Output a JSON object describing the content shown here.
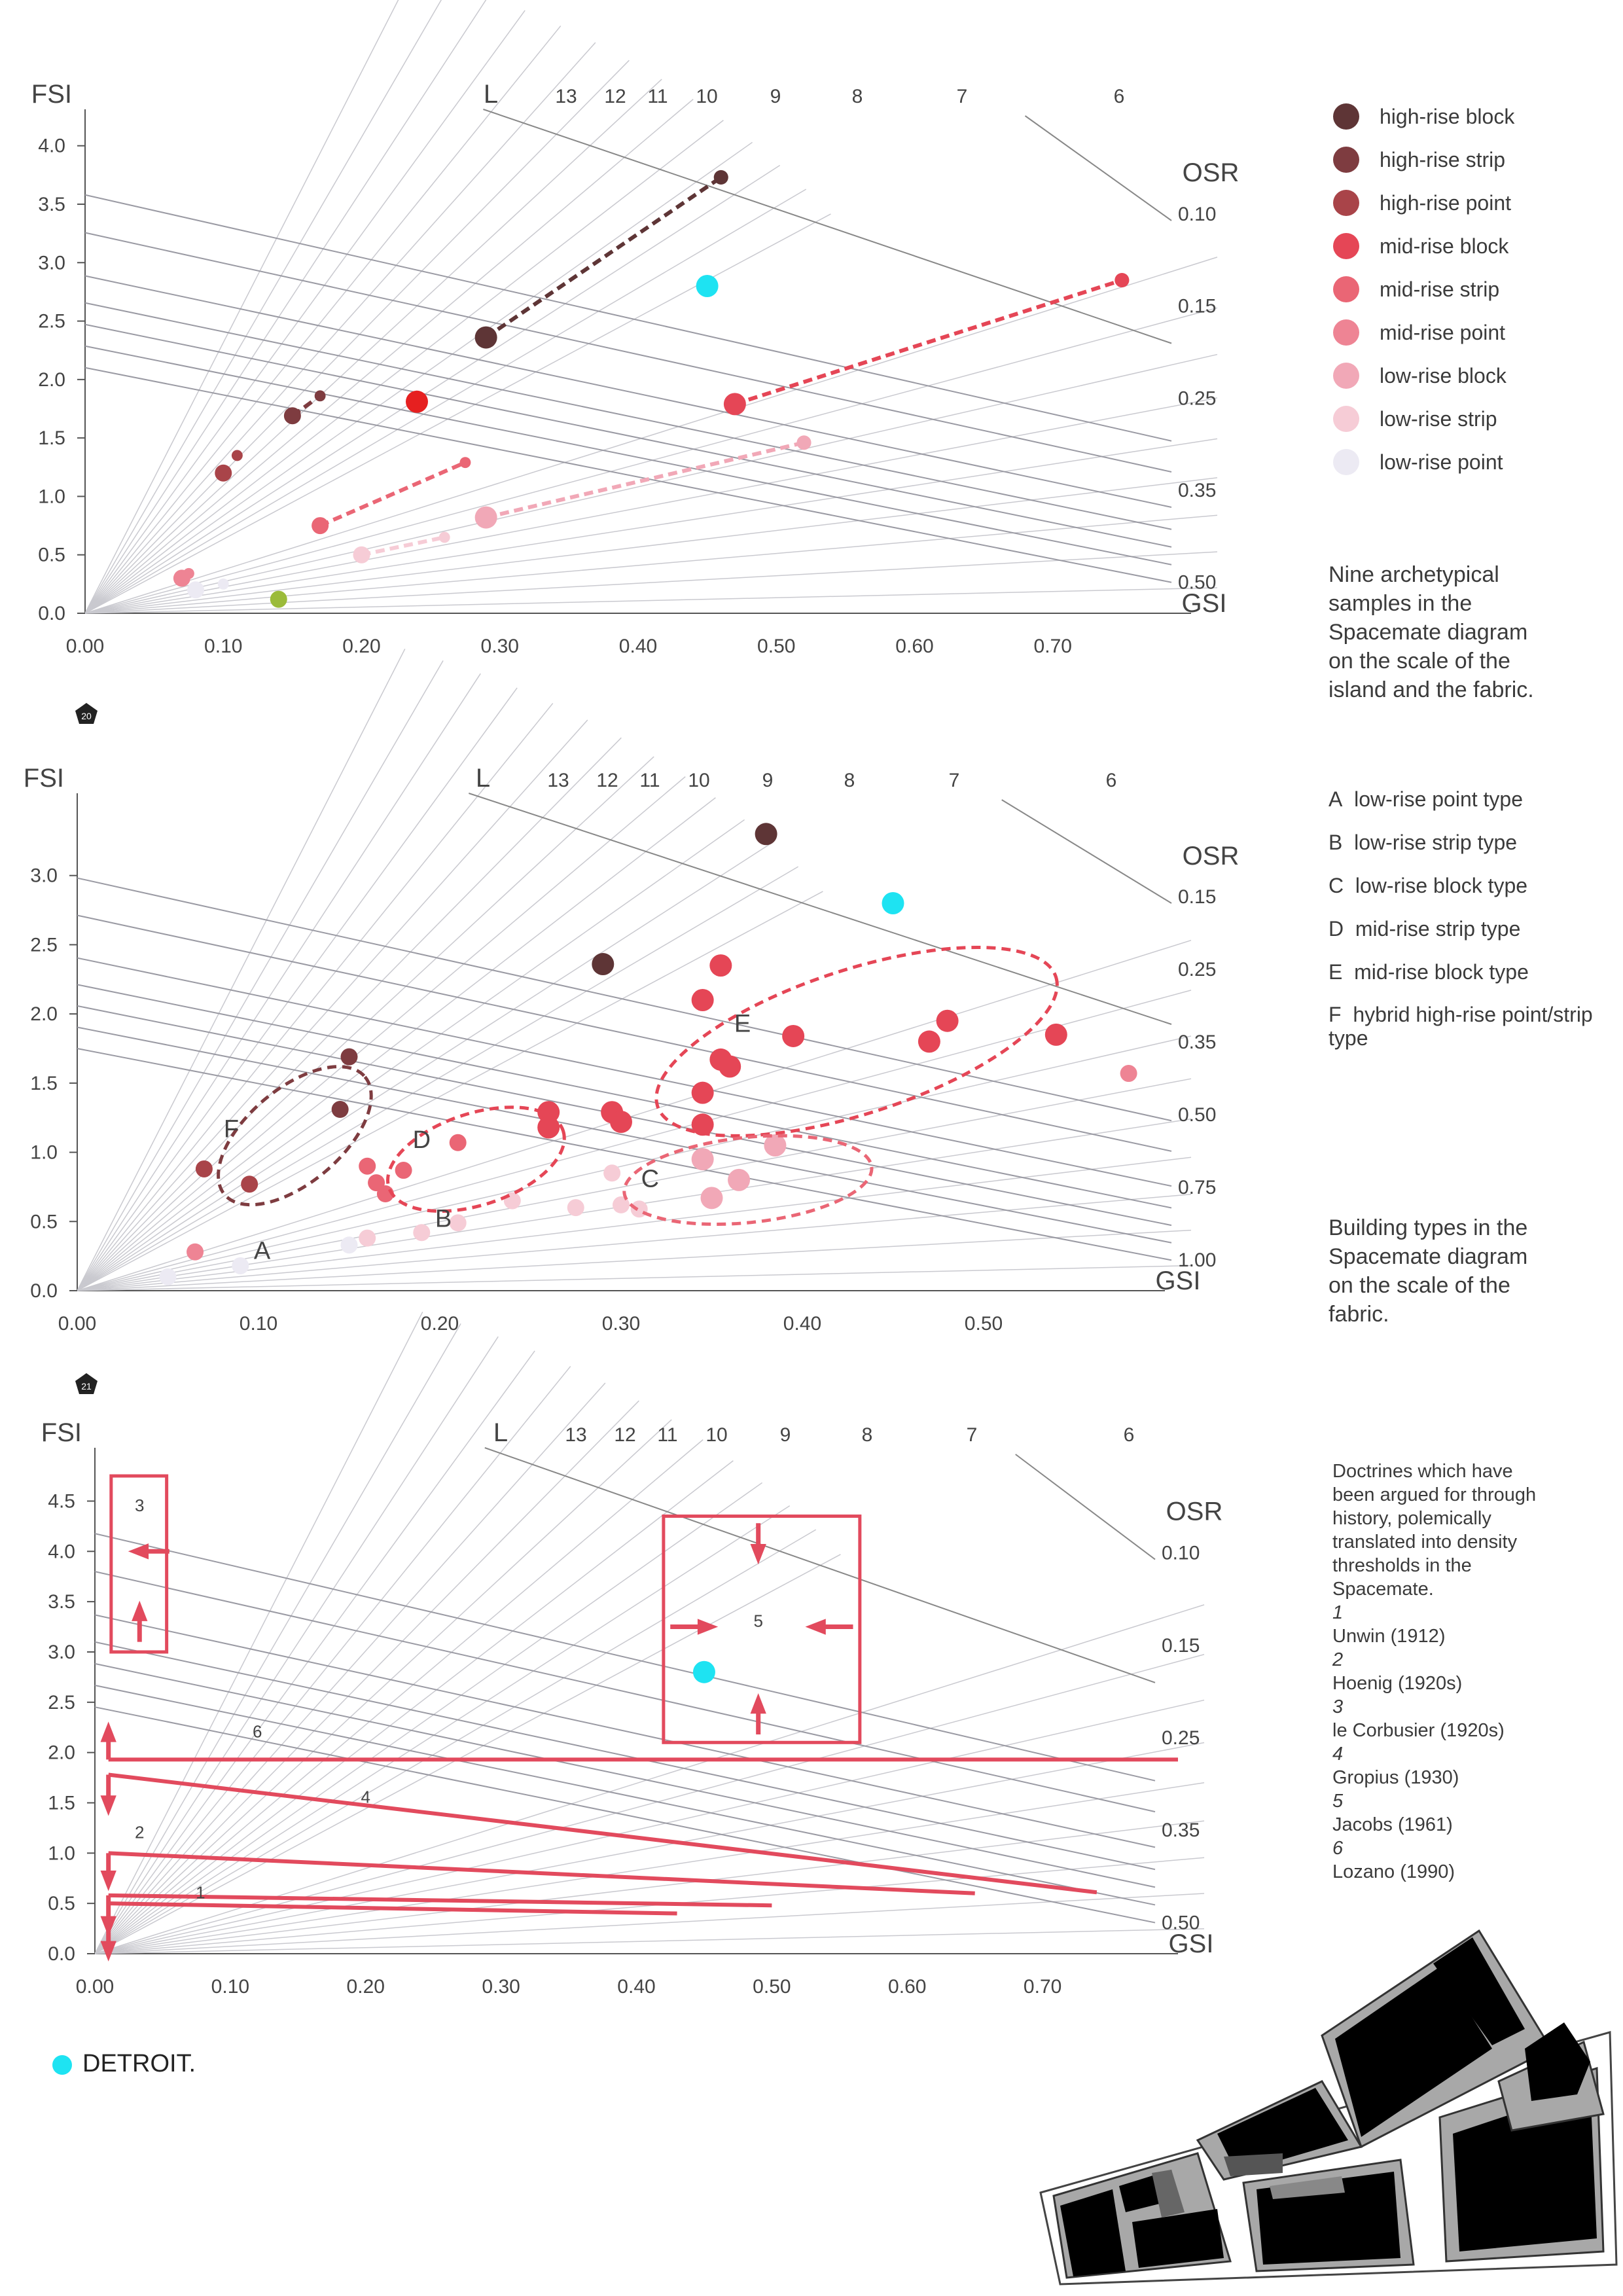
{
  "legend_colors": {
    "high-rise block": "#5e3536",
    "high-rise strip": "#7e3c40",
    "high-rise point": "#a94449",
    "mid-rise block": "#e54656",
    "mid-rise strip": "#ea6675",
    "mid-rise point": "#ee8494",
    "low-rise block": "#f1a8b7",
    "low-rise strip": "#f6ccd6",
    "low-rise point": "#eceaf3",
    "detroit": "#1ee3f2",
    "highlight": "#e62020",
    "green": "#9bbb3a",
    "doctrine": "#e24a5d"
  },
  "chart_data": [
    {
      "type": "scatter",
      "title": "",
      "xlabel": "GSI",
      "ylabel": "FSI",
      "xlim": [
        0,
        0.8
      ],
      "ylim": [
        0,
        4.2
      ],
      "x_ticks": [
        "0.00",
        "0.10",
        "0.20",
        "0.30",
        "0.40",
        "0.50",
        "0.60",
        "0.70"
      ],
      "y_ticks": [
        "0.0",
        "0.5",
        "1.0",
        "1.5",
        "2.0",
        "2.5",
        "3.0",
        "3.5",
        "4.0"
      ],
      "l_label": "L",
      "l_values": [
        "13",
        "12",
        "11",
        "10",
        "9",
        "8",
        "7",
        "6"
      ],
      "osr_label": "OSR",
      "osr_values": [
        "0.10",
        "0.15",
        "0.25",
        "0.35",
        "0.50"
      ],
      "legend": {
        "placement": "right",
        "entries": [
          "high-rise block",
          "high-rise strip",
          "high-rise point",
          "mid-rise block",
          "mid-rise strip",
          "mid-rise point",
          "low-rise block",
          "low-rise strip",
          "low-rise point"
        ]
      },
      "caption": "Nine archetypical samples in the Spacemate diagram on the scale of the island and the fabric.",
      "figure_number": "20",
      "series": [
        {
          "name": "high-rise block",
          "points": [
            [
              0.29,
              2.36
            ],
            [
              0.46,
              3.73
            ]
          ]
        },
        {
          "name": "high-rise strip",
          "points": [
            [
              0.15,
              1.69
            ],
            [
              0.17,
              1.86
            ]
          ]
        },
        {
          "name": "high-rise point",
          "points": [
            [
              0.1,
              1.2
            ],
            [
              0.11,
              1.35
            ]
          ]
        },
        {
          "name": "mid-rise block",
          "points": [
            [
              0.47,
              1.79
            ],
            [
              0.75,
              2.85
            ]
          ]
        },
        {
          "name": "mid-rise strip",
          "points": [
            [
              0.17,
              0.75
            ],
            [
              0.275,
              1.29
            ]
          ]
        },
        {
          "name": "mid-rise point",
          "points": [
            [
              0.07,
              0.3
            ],
            [
              0.075,
              0.34
            ]
          ]
        },
        {
          "name": "low-rise block",
          "points": [
            [
              0.29,
              0.82
            ],
            [
              0.52,
              1.46
            ]
          ]
        },
        {
          "name": "low-rise strip",
          "points": [
            [
              0.2,
              0.5
            ],
            [
              0.26,
              0.65
            ]
          ]
        },
        {
          "name": "low-rise point",
          "points": [
            [
              0.08,
              0.2
            ],
            [
              0.1,
              0.25
            ]
          ]
        },
        {
          "name": "detroit",
          "points": [
            [
              0.45,
              2.8
            ]
          ]
        },
        {
          "name": "highlight",
          "points": [
            [
              0.24,
              1.81
            ]
          ]
        },
        {
          "name": "green",
          "points": [
            [
              0.14,
              0.12
            ]
          ]
        }
      ]
    },
    {
      "type": "scatter",
      "title": "",
      "xlabel": "GSI",
      "ylabel": "FSI",
      "xlim": [
        0,
        0.6
      ],
      "ylim": [
        0,
        3.5
      ],
      "x_ticks": [
        "0.00",
        "0.10",
        "0.20",
        "0.30",
        "0.40",
        "0.50"
      ],
      "y_ticks": [
        "0.0",
        "0.5",
        "1.0",
        "1.5",
        "2.0",
        "2.5",
        "3.0"
      ],
      "l_label": "L",
      "l_values": [
        "13",
        "12",
        "11",
        "10",
        "9",
        "8",
        "7",
        "6"
      ],
      "osr_label": "OSR",
      "osr_values": [
        "0.15",
        "0.25",
        "0.35",
        "0.50",
        "0.75",
        "1.00"
      ],
      "types": [
        "low-rise point type",
        "low-rise strip type",
        "low-rise block type",
        "mid-rise strip type",
        "mid-rise block type",
        "hybrid high-rise point/strip type"
      ],
      "type_letters": [
        "A",
        "B",
        "C",
        "D",
        "E",
        "F"
      ],
      "caption": "Building types in the Spacemate diagram on the scale of the fabric.",
      "figure_number": "21",
      "series": [
        {
          "name": "high-rise block",
          "points": [
            [
              0.29,
              2.36
            ],
            [
              0.38,
              3.3
            ]
          ]
        },
        {
          "name": "high-rise strip",
          "points": [
            [
              0.15,
              1.69
            ],
            [
              0.145,
              1.31
            ]
          ]
        },
        {
          "name": "high-rise point",
          "points": [
            [
              0.07,
              0.88
            ],
            [
              0.095,
              0.77
            ]
          ]
        },
        {
          "name": "mid-rise block",
          "points": [
            [
              0.395,
              1.84
            ],
            [
              0.54,
              1.85
            ],
            [
              0.48,
              1.95
            ],
            [
              0.47,
              1.8
            ],
            [
              0.355,
              2.35
            ],
            [
              0.345,
              2.1
            ],
            [
              0.355,
              1.67
            ],
            [
              0.36,
              1.62
            ],
            [
              0.345,
              1.43
            ],
            [
              0.295,
              1.29
            ],
            [
              0.3,
              1.22
            ],
            [
              0.345,
              1.2
            ],
            [
              0.26,
              1.29
            ],
            [
              0.26,
              1.18
            ]
          ]
        },
        {
          "name": "mid-rise strip",
          "points": [
            [
              0.165,
              0.78
            ],
            [
              0.16,
              0.9
            ],
            [
              0.18,
              0.87
            ],
            [
              0.21,
              1.07
            ],
            [
              0.17,
              0.7
            ]
          ]
        },
        {
          "name": "mid-rise point",
          "points": [
            [
              0.065,
              0.28
            ]
          ]
        },
        {
          "name": "low-rise block",
          "points": [
            [
              0.385,
              1.05
            ],
            [
              0.365,
              0.8
            ],
            [
              0.345,
              0.95
            ],
            [
              0.35,
              0.67
            ]
          ]
        },
        {
          "name": "low-rise strip",
          "points": [
            [
              0.295,
              0.85
            ],
            [
              0.3,
              0.62
            ],
            [
              0.31,
              0.59
            ],
            [
              0.275,
              0.6
            ],
            [
              0.24,
              0.65
            ],
            [
              0.21,
              0.49
            ],
            [
              0.19,
              0.42
            ],
            [
              0.16,
              0.38
            ]
          ]
        },
        {
          "name": "low-rise point",
          "points": [
            [
              0.09,
              0.18
            ],
            [
              0.05,
              0.1
            ],
            [
              0.15,
              0.33
            ]
          ]
        },
        {
          "name": "mid-rise point",
          "points": [
            [
              0.58,
              1.57
            ]
          ]
        },
        {
          "name": "detroit",
          "points": [
            [
              0.45,
              2.8
            ]
          ]
        }
      ]
    },
    {
      "type": "scatter",
      "title": "",
      "xlabel": "GSI",
      "ylabel": "FSI",
      "xlim": [
        0,
        0.8
      ],
      "ylim": [
        0,
        4.9
      ],
      "x_ticks": [
        "0.00",
        "0.10",
        "0.20",
        "0.30",
        "0.40",
        "0.50",
        "0.60",
        "0.70"
      ],
      "y_ticks": [
        "0.0",
        "0.5",
        "1.0",
        "1.5",
        "2.0",
        "2.5",
        "3.0",
        "3.5",
        "4.0",
        "4.5"
      ],
      "l_label": "L",
      "l_values": [
        "13",
        "12",
        "11",
        "10",
        "9",
        "8",
        "7",
        "6"
      ],
      "osr_label": "OSR",
      "osr_values": [
        "0.10",
        "0.15",
        "0.25",
        "0.35",
        "0.50"
      ],
      "doctrine_numbers": [
        "1",
        "2",
        "3",
        "4",
        "5",
        "6"
      ],
      "doctrines_intro": "Doctrines which have been argued for through history, polemically translated into density thresholds in the Spacemate.",
      "doctrines": [
        "Unwin (1912)",
        "Hoenig (1920s)",
        "le Corbusier (1920s)",
        "Gropius (1930)",
        "Jacobs (1961)",
        "Lozano (1990)"
      ],
      "series": [
        {
          "name": "detroit",
          "points": [
            [
              0.45,
              2.8
            ]
          ]
        }
      ]
    }
  ],
  "detroit_label": "DETROIT."
}
